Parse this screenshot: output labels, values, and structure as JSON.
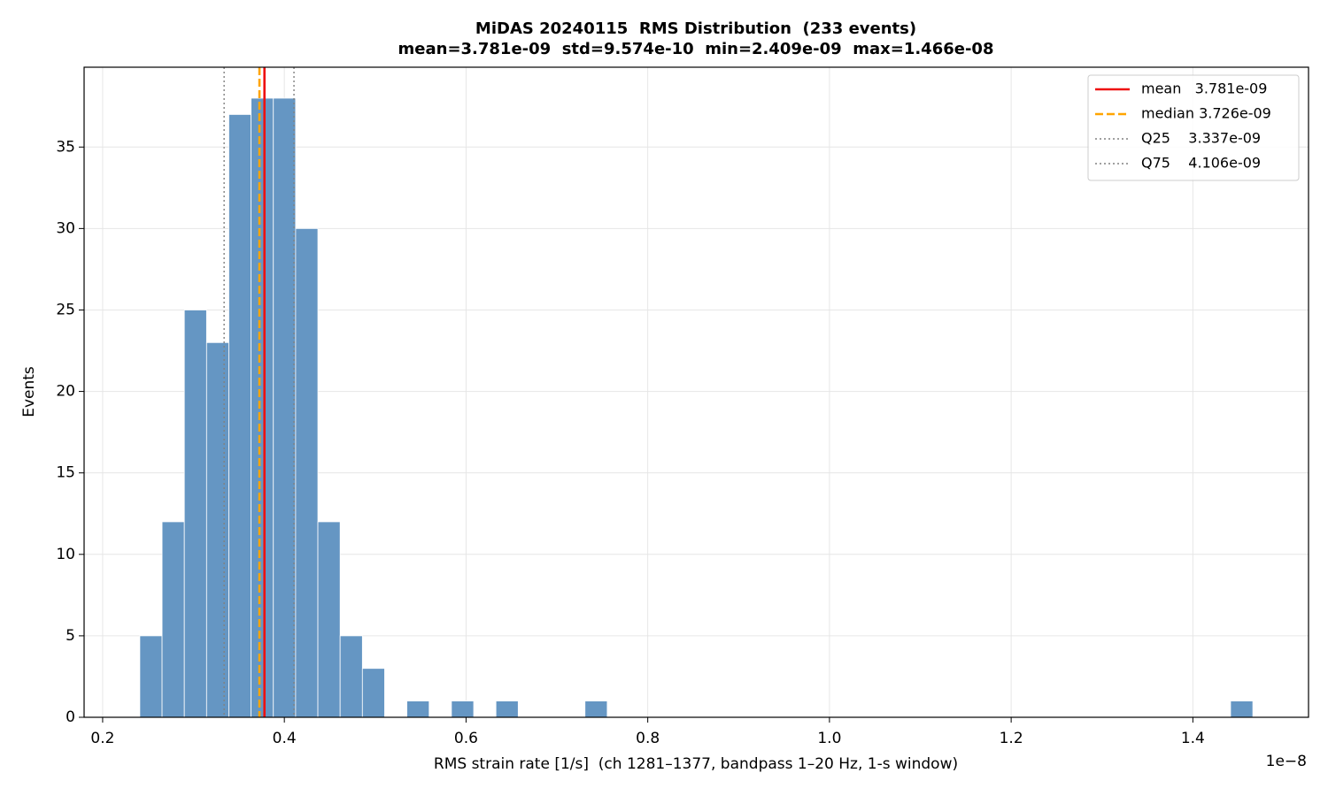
{
  "chart_data": {
    "type": "histogram",
    "title": "MiDAS 20240115  RMS Distribution  (233 events)",
    "subtitle": "mean=3.781e-09  std=9.574e-10  min=2.409e-09  max=1.466e-08",
    "x_label": "RMS strain rate [1/s]  (ch 1281–1377, bandpass 1–20 Hz, 1-s window)",
    "y_label": "Events",
    "x_offset_label": "1e−8",
    "bins": [
      0.2409,
      0.2654,
      0.2899,
      0.3144,
      0.3389,
      0.3634,
      0.3879,
      0.4124,
      0.4369,
      0.4614,
      0.4859,
      0.5104,
      0.5349,
      0.5594,
      0.5839,
      0.6084,
      0.6329,
      0.6574,
      0.6819,
      0.7064,
      0.7309,
      0.7554,
      0.7799,
      0.8044,
      0.8289,
      0.8535,
      0.878,
      0.9025,
      0.927,
      0.9515,
      0.976,
      1.0005,
      1.025,
      1.0495,
      1.074,
      1.0985,
      1.123,
      1.1475,
      1.172,
      1.1965,
      1.221,
      1.2455,
      1.27,
      1.2945,
      1.319,
      1.3435,
      1.368,
      1.3925,
      1.417,
      1.4415,
      1.466
    ],
    "counts": [
      5,
      12,
      25,
      23,
      37,
      38,
      38,
      30,
      12,
      5,
      3,
      0,
      1,
      0,
      1,
      0,
      1,
      0,
      0,
      0,
      1,
      0,
      0,
      0,
      0,
      0,
      0,
      0,
      0,
      0,
      0,
      0,
      0,
      0,
      0,
      0,
      0,
      0,
      0,
      0,
      0,
      0,
      0,
      0,
      0,
      0,
      0,
      0,
      0,
      1
    ],
    "color": "#6596c3",
    "xlim": [
      0.1796,
      1.5273
    ],
    "xticks": [
      0.2,
      0.4,
      0.6,
      0.8,
      {
        "value": 1.0,
        "label": "1.0"
      },
      1.2,
      1.4
    ],
    "ylim": [
      0,
      39.9
    ],
    "yticks": [
      0,
      5,
      10,
      15,
      20,
      25,
      30,
      35
    ],
    "grid": true,
    "legend_position": "upper right",
    "vlines": [
      {
        "label": "mean   3.781e-09",
        "value": 0.3781,
        "color": "#ee1111",
        "linestyle": "solid"
      },
      {
        "label": "median 3.726e-09",
        "value": 0.3726,
        "color": "#ffa500",
        "linestyle": "dashed"
      },
      {
        "label": "Q25    3.337e-09",
        "value": 0.3337,
        "color": "#808080",
        "linestyle": "dotted"
      },
      {
        "label": "Q75    4.106e-09",
        "value": 0.4106,
        "color": "#808080",
        "linestyle": "dotted"
      }
    ]
  }
}
